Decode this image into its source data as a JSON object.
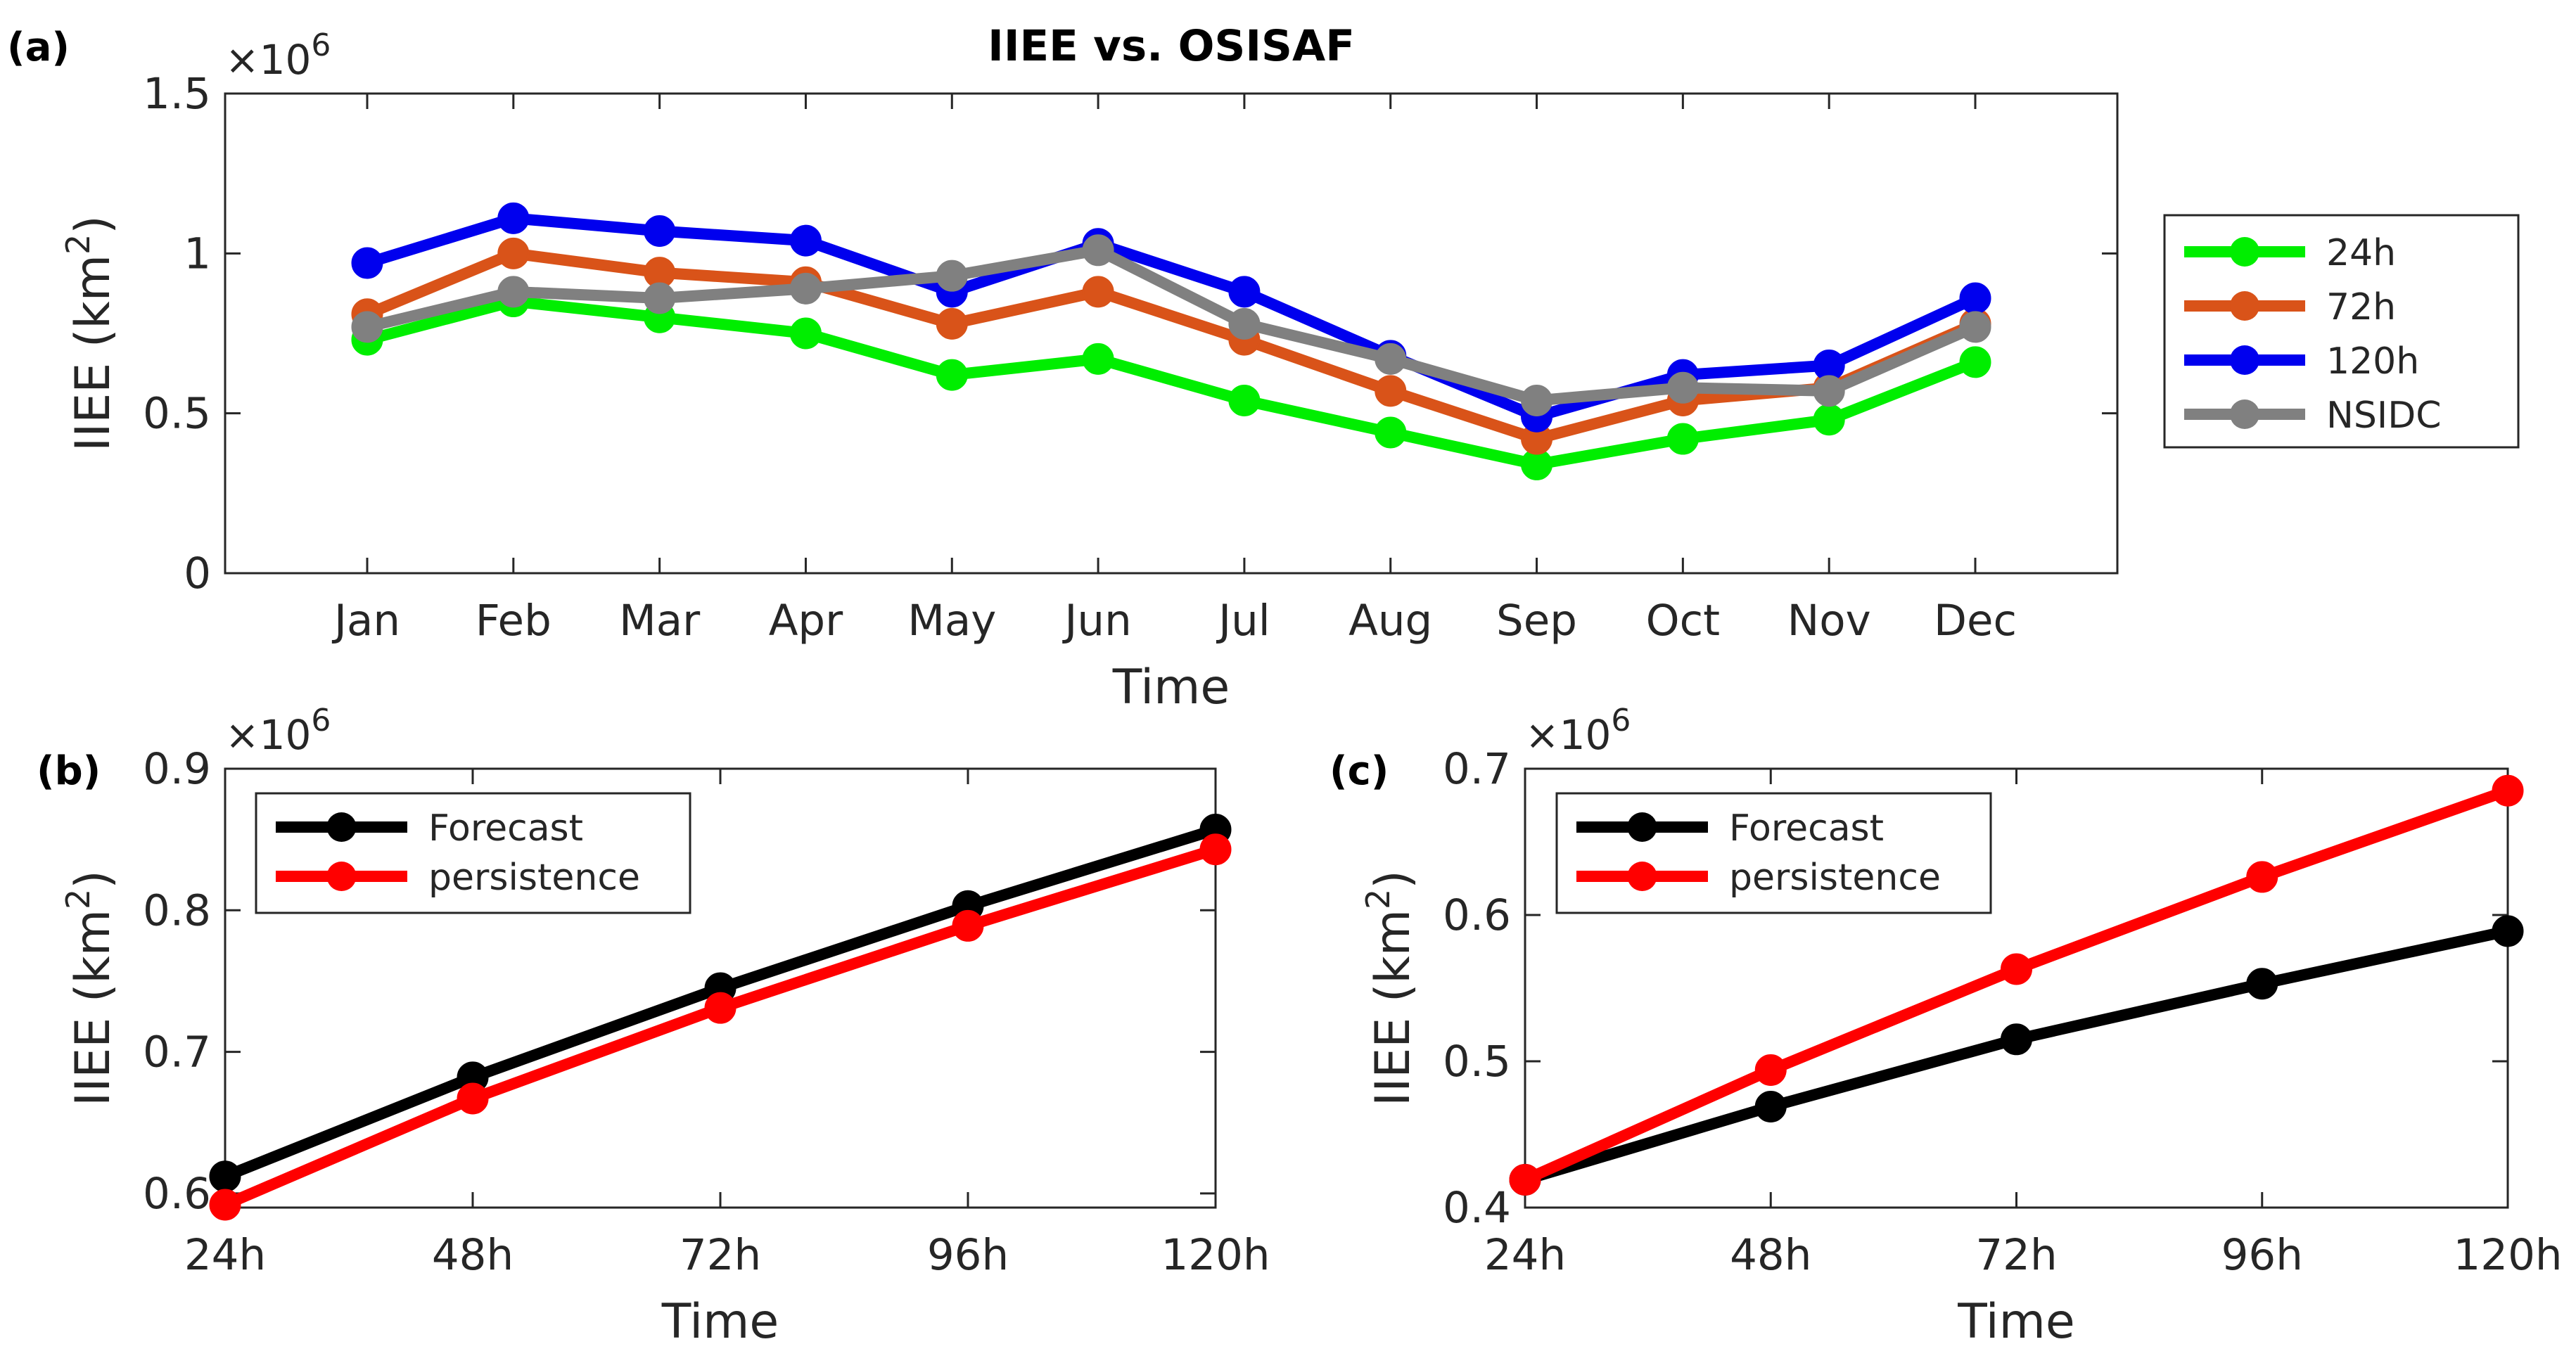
{
  "chart_data": [
    {
      "id": "a",
      "panel_label": "(a)",
      "type": "line",
      "title": "IIEE vs. OSISAF",
      "xlabel": "Time",
      "ylabel": "IIEE (km²)",
      "ylabel_main": "IIEE (km",
      "ylabel_sup": "2",
      "ylabel_close": ")",
      "exponent_prefix": "×10",
      "exponent_power": "6",
      "categories": [
        "Jan",
        "Feb",
        "Mar",
        "Apr",
        "May",
        "Jun",
        "Jul",
        "Aug",
        "Sep",
        "Oct",
        "Nov",
        "Dec"
      ],
      "ylim": [
        0,
        1.5
      ],
      "yticks": [
        0,
        0.5,
        1,
        1.5
      ],
      "ytick_labels": [
        "0",
        "0.5",
        "1",
        "1.5"
      ],
      "legend_position": "outside-right",
      "series": [
        {
          "name": "24h",
          "color": "#00ee00",
          "values": [
            0.73,
            0.85,
            0.8,
            0.75,
            0.62,
            0.67,
            0.54,
            0.44,
            0.34,
            0.42,
            0.48,
            0.66
          ]
        },
        {
          "name": "72h",
          "color": "#d95319",
          "values": [
            0.81,
            1.0,
            0.94,
            0.91,
            0.78,
            0.88,
            0.73,
            0.57,
            0.42,
            0.54,
            0.58,
            0.78
          ]
        },
        {
          "name": "120h",
          "color": "#0000ee",
          "values": [
            0.97,
            1.11,
            1.07,
            1.04,
            0.88,
            1.03,
            0.88,
            0.68,
            0.49,
            0.62,
            0.65,
            0.86
          ]
        },
        {
          "name": "NSIDC",
          "color": "#808080",
          "values": [
            0.77,
            0.88,
            0.86,
            0.89,
            0.93,
            1.01,
            0.78,
            0.67,
            0.54,
            0.58,
            0.57,
            0.77
          ]
        }
      ]
    },
    {
      "id": "b",
      "panel_label": "(b)",
      "type": "line",
      "xlabel": "Time",
      "ylabel": "IIEE (km²)",
      "ylabel_main": "IIEE (km",
      "ylabel_sup": "2",
      "ylabel_close": ")",
      "exponent_prefix": "×10",
      "exponent_power": "6",
      "categories": [
        "24h",
        "48h",
        "72h",
        "96h",
        "120h"
      ],
      "ylim": [
        0.59,
        0.9
      ],
      "yticks": [
        0.6,
        0.7,
        0.8,
        0.9
      ],
      "ytick_labels": [
        "0.6",
        "0.7",
        "0.8",
        "0.9"
      ],
      "legend_position": "top-left",
      "series": [
        {
          "name": "Forecast",
          "color": "#000000",
          "values": [
            0.612,
            0.682,
            0.745,
            0.803,
            0.857
          ]
        },
        {
          "name": "persistence",
          "color": "#ff0000",
          "values": [
            0.592,
            0.667,
            0.731,
            0.789,
            0.843
          ]
        }
      ]
    },
    {
      "id": "c",
      "panel_label": "(c)",
      "type": "line",
      "xlabel": "Time",
      "ylabel": "IIEE (km²)",
      "ylabel_main": "IIEE (km",
      "ylabel_sup": "2",
      "ylabel_close": ")",
      "exponent_prefix": "×10",
      "exponent_power": "6",
      "categories": [
        "24h",
        "48h",
        "72h",
        "96h",
        "120h"
      ],
      "ylim": [
        0.4,
        0.7
      ],
      "yticks": [
        0.4,
        0.5,
        0.6,
        0.7
      ],
      "ytick_labels": [
        "0.4",
        "0.5",
        "0.6",
        "0.7"
      ],
      "legend_position": "top-left",
      "series": [
        {
          "name": "Forecast",
          "color": "#000000",
          "values": [
            0.419,
            0.469,
            0.515,
            0.553,
            0.589
          ]
        },
        {
          "name": "persistence",
          "color": "#ff0000",
          "values": [
            0.419,
            0.494,
            0.563,
            0.626,
            0.685
          ]
        }
      ]
    }
  ]
}
